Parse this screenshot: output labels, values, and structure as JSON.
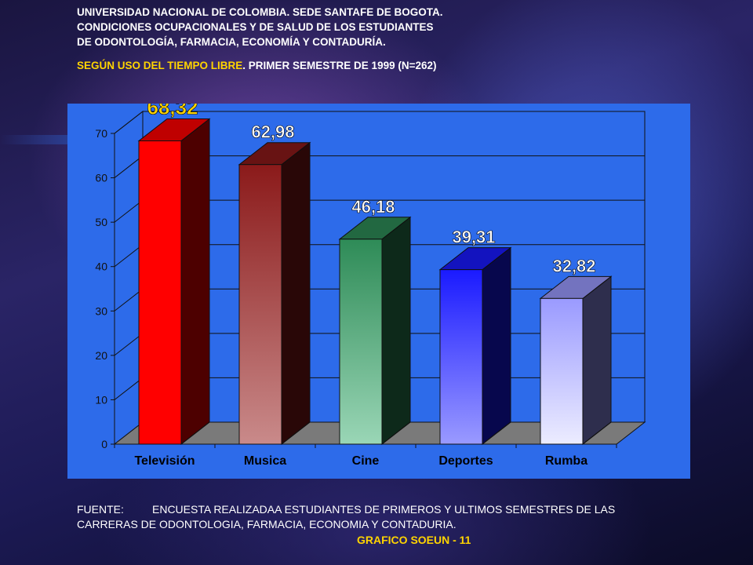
{
  "header": {
    "title_lines": [
      "UNIVERSIDAD NACIONAL DE COLOMBIA. SEDE SANTAFE DE BOGOTA.",
      "CONDICIONES OCUPACIONALES Y DE SALUD DE LOS ESTUDIANTES",
      "DE ODONTOLOGÍA, FARMACIA, ECONOMÍA Y CONTADURÍA."
    ],
    "subtitle_highlight": "SEGÚN  USO DEL TIEMPO LIBRE",
    "subtitle_rest": ". PRIMER SEMESTRE DE 1999  (N=262)"
  },
  "footer": {
    "label": "FUENTE:",
    "line1": "ENCUESTA REALIZADAA ESTUDIANTES DE PRIMEROS Y ULTIMOS SEMESTRES DE LAS",
    "line2": "CARRERAS DE ODONTOLOGIA, FARMACIA, ECONOMIA Y CONTADURIA.",
    "code": "GRAFICO SOEUN - 11"
  },
  "colors": {
    "plot_background": "#2d6bea",
    "highlight_text": "#ffd400"
  },
  "chart_data": {
    "type": "bar",
    "style": "3d",
    "categories": [
      "Televisión",
      "Musica",
      "Cine",
      "Deportes",
      "Rumba"
    ],
    "values": [
      68.32,
      62.98,
      46.18,
      39.31,
      32.82
    ],
    "data_labels": [
      "68,32",
      "62,98",
      "46,18",
      "39,31",
      "32,82"
    ],
    "bar_colors": [
      "#ff0000",
      "#8b1a1a",
      "#2e8b57",
      "#1a1aff",
      "#9a9aff"
    ],
    "bar_colors_bottom": [
      "#ff0000",
      "#c98a8a",
      "#9ad6b6",
      "#9a9aff",
      "#ececff"
    ],
    "label_colors": [
      "#ffd400",
      "#ffffff",
      "#ffffff",
      "#ffffff",
      "#ffffff"
    ],
    "ylim": [
      0,
      70
    ],
    "yticks": [
      0,
      10,
      20,
      30,
      40,
      50,
      60,
      70
    ],
    "grid": true,
    "legend": "none"
  }
}
